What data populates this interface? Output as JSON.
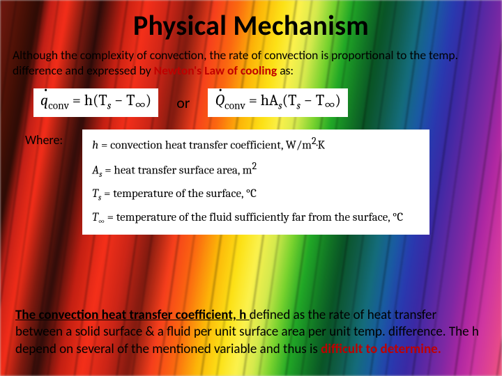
{
  "title": "Physical Mechanism",
  "intro": {
    "pre": "Although the complexity of convection, the rate of convection is proportional to the temp. difference and expressed by ",
    "law": "Newton's Law of cooling",
    "post": " as:"
  },
  "equations": {
    "q_label": "q̇",
    "q_sub": "conv",
    "eq1_rhs_open": " = h(T",
    "s_sub": "s",
    "minus": " − T",
    "inf_sub": "∞",
    "close": ")",
    "or": "or",
    "Q_label": "Q̇",
    "eq2_rhs_open": " = hA",
    "eq2_rhs_mid": "(T"
  },
  "where_label": "Where:",
  "defs": {
    "h": {
      "sym": "h",
      "text": " = convection heat transfer coefficient, W/m",
      "sup": "2",
      "tail": "·K"
    },
    "As": {
      "sym": "A",
      "sub": "s",
      "text": " = heat transfer surface area, m",
      "sup": "2"
    },
    "Ts": {
      "sym": "T",
      "sub": "s",
      "text": " = temperature of the surface, °C"
    },
    "Tinf": {
      "sym": "T",
      "sub": "∞",
      "text": " = temperature of the fluid sufficiently far from the surface, °C"
    }
  },
  "conclusion": {
    "lead": "The convection heat transfer coefficient, h ",
    "body1": "defined as the rate of heat transfer between a solid surface & a fluid per unit surface area per unit temp. difference. The h depend on several of the mentioned variable and thus is ",
    "difficult": "difficult to determine."
  },
  "colors": {
    "emphasis_red": "#c00000",
    "text": "#000000",
    "panel_bg": "#ffffff"
  }
}
